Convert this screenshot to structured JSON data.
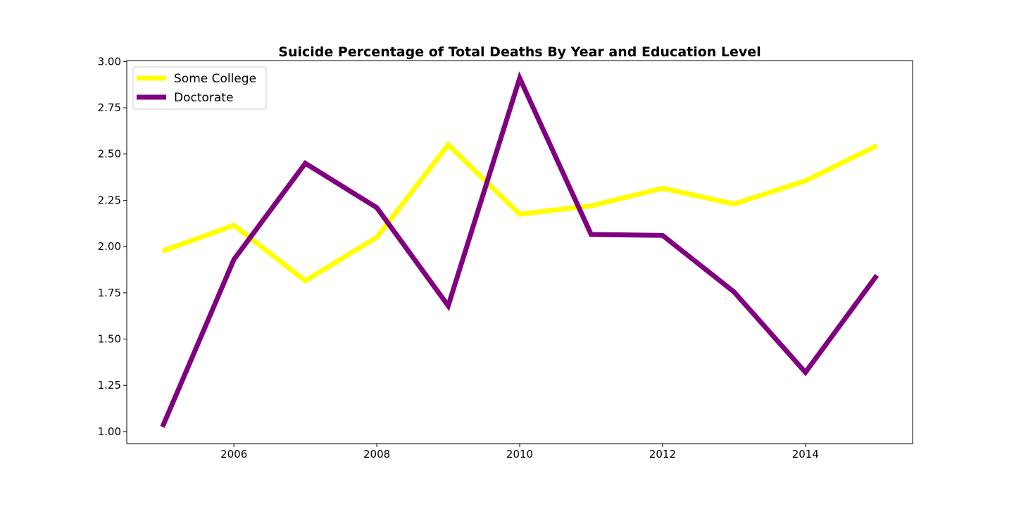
{
  "chart_data": {
    "type": "line",
    "title": "Suicide Percentage of Total Deaths By Year and Education Level",
    "xlabel": "",
    "ylabel": "",
    "x": [
      2005,
      2006,
      2007,
      2008,
      2009,
      2010,
      2011,
      2012,
      2013,
      2014,
      2015
    ],
    "xlim": [
      2004.5,
      2015.5
    ],
    "ylim": [
      0.935,
      3.005
    ],
    "x_ticks": [
      2006,
      2008,
      2010,
      2012,
      2014
    ],
    "x_tick_labels": [
      "2006",
      "2008",
      "2010",
      "2012",
      "2014"
    ],
    "y_ticks": [
      1.0,
      1.25,
      1.5,
      1.75,
      2.0,
      2.25,
      2.5,
      2.75,
      3.0
    ],
    "y_tick_labels": [
      "1.00",
      "1.25",
      "1.50",
      "1.75",
      "2.00",
      "2.25",
      "2.50",
      "2.75",
      "3.00"
    ],
    "grid": false,
    "legend_position": "top-left",
    "series": [
      {
        "name": "Some College",
        "color": "#ffff00",
        "values": [
          1.975,
          2.115,
          1.815,
          2.05,
          2.55,
          2.175,
          2.22,
          2.315,
          2.23,
          2.355,
          2.545
        ]
      },
      {
        "name": "Doctorate",
        "color": "#800080",
        "values": [
          1.025,
          1.93,
          2.45,
          2.21,
          1.68,
          2.91,
          2.065,
          2.06,
          1.755,
          1.32,
          1.845
        ]
      }
    ]
  }
}
